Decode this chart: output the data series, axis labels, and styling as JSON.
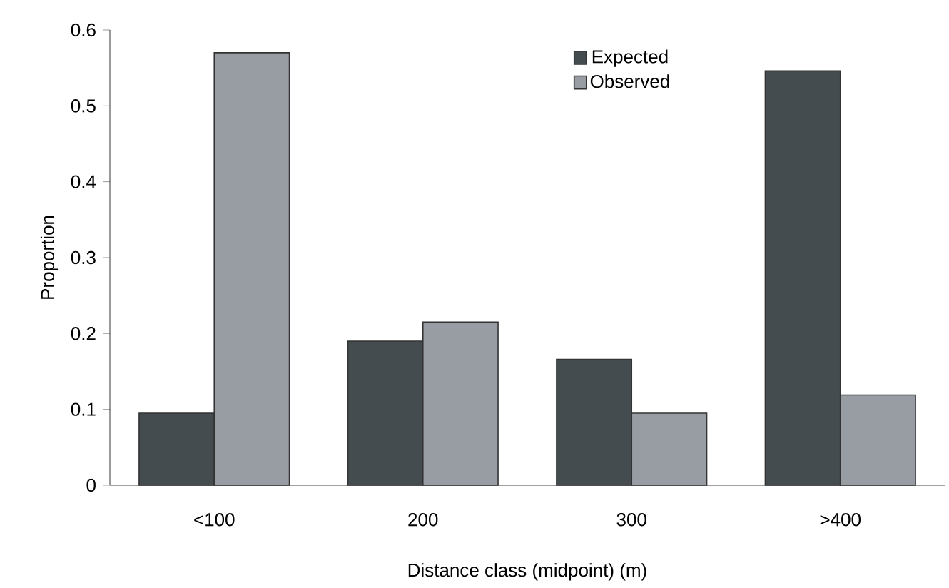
{
  "chart_data": {
    "type": "bar",
    "xlabel": "Distance class (midpoint) (m)",
    "ylabel": "Proportion",
    "categories": [
      "<100",
      "200",
      "300",
      ">400"
    ],
    "series": [
      {
        "name": "Expected",
        "color": "#454c4f",
        "values": [
          0.095,
          0.19,
          0.166,
          0.546
        ]
      },
      {
        "name": "Observed",
        "color": "#989da4",
        "values": [
          0.57,
          0.215,
          0.095,
          0.119
        ]
      }
    ],
    "ylim": [
      0,
      0.6
    ],
    "yticks": [
      0,
      0.1,
      0.2,
      0.3,
      0.4,
      0.5,
      0.6
    ],
    "legend": "top"
  }
}
